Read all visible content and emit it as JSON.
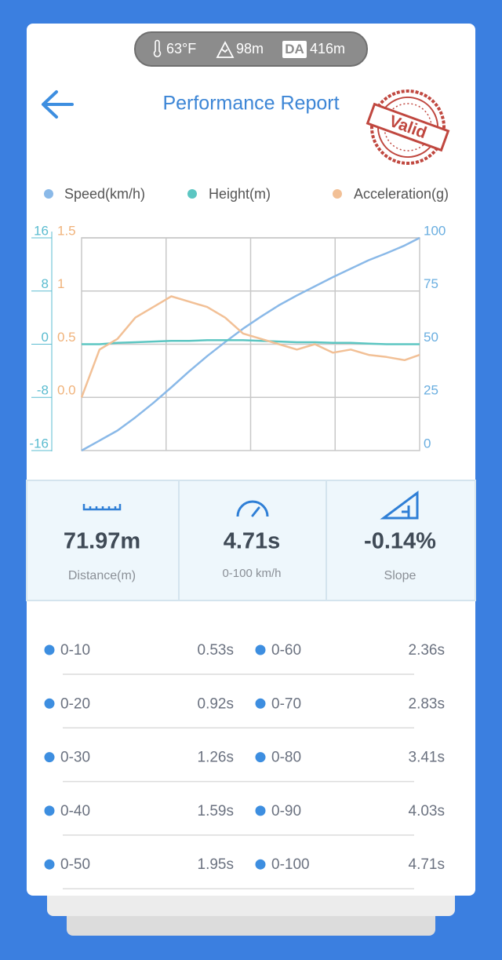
{
  "status_bar": {
    "temperature": "63°F",
    "altitude": "98m",
    "da_badge": "DA",
    "da_value": "416m"
  },
  "header": {
    "title": "Performance Report",
    "stamp": "Valid"
  },
  "chart_data": {
    "type": "line",
    "x": [
      0,
      0.25,
      0.5,
      0.75,
      1.0,
      1.25,
      1.5,
      1.75,
      2.0,
      2.25,
      2.5,
      2.75,
      3.0,
      3.25,
      3.5,
      3.75,
      4.0,
      4.25,
      4.5,
      4.71
    ],
    "xlim": [
      0,
      4.71
    ],
    "series": [
      {
        "name": "Speed(km/h)",
        "color": "#8ab9e8",
        "axis": "y2",
        "values": [
          0,
          4.7,
          9.4,
          15.6,
          22.4,
          29.7,
          37.3,
          44.4,
          51.0,
          57.3,
          63.0,
          68.3,
          72.9,
          77.2,
          81.5,
          85.5,
          89.5,
          92.8,
          96.4,
          100
        ]
      },
      {
        "name": "Height(m)",
        "color": "#5cc6c2",
        "values": [
          0,
          0,
          0.2,
          0.3,
          0.4,
          0.5,
          0.5,
          0.6,
          0.6,
          0.6,
          0.5,
          0.4,
          0.3,
          0.3,
          0.2,
          0.2,
          0.1,
          0,
          0,
          0
        ]
      },
      {
        "name": "Acceleration(g)",
        "color": "#f2c096",
        "axis": "y3",
        "values": [
          0.0,
          0.45,
          0.55,
          0.75,
          0.85,
          0.95,
          0.9,
          0.85,
          0.75,
          0.6,
          0.55,
          0.5,
          0.45,
          0.5,
          0.42,
          0.45,
          0.4,
          0.38,
          0.35,
          0.4
        ]
      }
    ],
    "ylim": [
      -16,
      16
    ],
    "yticks": [
      -16,
      -8,
      0,
      8,
      16
    ],
    "ytick_color": "#5bbcd0",
    "y2lim": [
      0,
      100
    ],
    "y2ticks": [
      0,
      25,
      50,
      75,
      100
    ],
    "y2tick_color": "#6aaee0",
    "y3lim": [
      -0.5,
      1.5
    ],
    "y3ticks": [
      {
        "value": 0,
        "label": "0.0"
      },
      0.5,
      1,
      1.5
    ],
    "y3tick_color": "#f0b27a",
    "grid": true
  },
  "stats": [
    {
      "value": "71.97m",
      "label": "Distance(m)"
    },
    {
      "value": "4.71s",
      "label": "0-100 km/h"
    },
    {
      "value": "-0.14%",
      "label": "Slope"
    }
  ],
  "splits": [
    {
      "range": "0-10",
      "time": "0.53s"
    },
    {
      "range": "0-20",
      "time": "0.92s"
    },
    {
      "range": "0-30",
      "time": "1.26s"
    },
    {
      "range": "0-40",
      "time": "1.59s"
    },
    {
      "range": "0-50",
      "time": "1.95s"
    },
    {
      "range": "0-60",
      "time": "2.36s"
    },
    {
      "range": "0-70",
      "time": "2.83s"
    },
    {
      "range": "0-80",
      "time": "3.41s"
    },
    {
      "range": "0-90",
      "time": "4.03s"
    },
    {
      "range": "0-100",
      "time": "4.71s"
    }
  ]
}
